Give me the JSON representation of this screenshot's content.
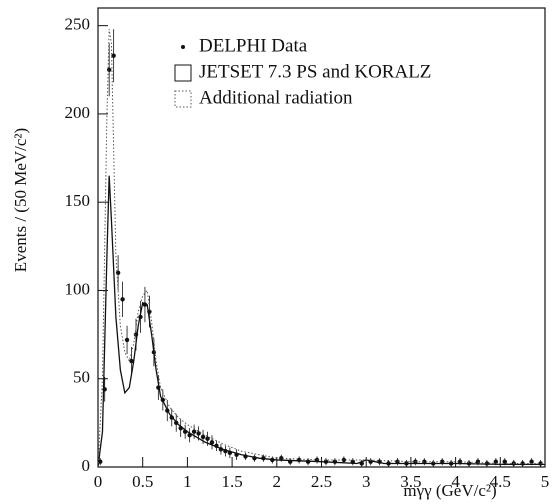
{
  "chart_data": {
    "type": "scatter",
    "xlabel": "mγγ (GeV/c²)",
    "ylabel": "Events / (50 MeV/c²)",
    "xlim": [
      0,
      5
    ],
    "ylim": [
      0,
      260
    ],
    "xticks": [
      0,
      0.5,
      1,
      1.5,
      2,
      2.5,
      3,
      3.5,
      4,
      4.5,
      5
    ],
    "yticks": [
      0,
      50,
      100,
      150,
      200,
      250
    ],
    "legend": "top-right",
    "series": [
      {
        "name": "DELPHI Data",
        "type": "scatter",
        "color": "#111111",
        "x": [
          0.025,
          0.075,
          0.125,
          0.175,
          0.225,
          0.275,
          0.325,
          0.375,
          0.425,
          0.475,
          0.525,
          0.575,
          0.625,
          0.675,
          0.725,
          0.775,
          0.825,
          0.875,
          0.925,
          0.975,
          1.025,
          1.075,
          1.125,
          1.175,
          1.225,
          1.275,
          1.325,
          1.375,
          1.425,
          1.475,
          1.55,
          1.65,
          1.75,
          1.85,
          1.95,
          2.05,
          2.15,
          2.25,
          2.35,
          2.45,
          2.55,
          2.65,
          2.75,
          2.85,
          2.95,
          3.05,
          3.15,
          3.25,
          3.35,
          3.45,
          3.55,
          3.65,
          3.75,
          3.85,
          3.95,
          4.05,
          4.15,
          4.25,
          4.35,
          4.45,
          4.55,
          4.65,
          4.75,
          4.85,
          4.95
        ],
        "values": [
          3,
          44,
          225,
          233,
          110,
          95,
          72,
          60,
          75,
          85,
          92,
          88,
          65,
          45,
          38,
          32,
          28,
          25,
          22,
          20,
          18,
          20,
          19,
          17,
          16,
          14,
          12,
          10,
          9,
          8,
          7,
          6,
          5,
          5,
          4,
          5,
          3,
          4,
          3,
          4,
          3,
          3,
          4,
          3,
          2,
          3,
          3,
          2,
          3,
          2,
          3,
          3,
          2,
          3,
          2,
          3,
          2,
          3,
          2,
          3,
          3,
          2,
          2,
          3,
          2
        ],
        "errors": [
          2,
          7,
          15,
          15,
          10,
          10,
          8,
          8,
          9,
          9,
          10,
          9,
          8,
          7,
          6,
          6,
          5,
          5,
          5,
          4,
          4,
          4,
          4,
          4,
          4,
          4,
          3,
          3,
          3,
          3,
          3,
          2,
          2,
          2,
          2,
          2,
          2,
          2,
          2,
          2,
          2,
          2,
          2,
          2,
          2,
          2,
          2,
          2,
          2,
          2,
          2,
          2,
          2,
          2,
          2,
          2,
          2,
          2,
          2,
          2,
          2,
          2,
          2,
          2,
          2
        ]
      },
      {
        "name": "JETSET 7.3 PS and KORALZ",
        "type": "line",
        "dash": "solid",
        "color": "#111111",
        "x": [
          0,
          0.05,
          0.1,
          0.125,
          0.15,
          0.2,
          0.25,
          0.3,
          0.35,
          0.4,
          0.45,
          0.5,
          0.55,
          0.6,
          0.65,
          0.7,
          0.8,
          0.9,
          1.0,
          1.2,
          1.4,
          1.6,
          1.8,
          2.0,
          2.5,
          2.9,
          3.0,
          3.2,
          3.5,
          4,
          4.5,
          5
        ],
        "values": [
          0,
          20,
          120,
          165,
          140,
          85,
          55,
          42,
          45,
          60,
          80,
          93,
          92,
          75,
          55,
          40,
          30,
          24,
          20,
          14,
          10,
          7,
          5,
          4,
          3,
          2,
          4,
          2,
          2,
          2,
          1.5,
          1.5
        ]
      },
      {
        "name": "Additional radiation",
        "type": "line",
        "dash": "dotted",
        "color": "#555555",
        "x": [
          0,
          0.05,
          0.1,
          0.125,
          0.15,
          0.2,
          0.25,
          0.3,
          0.35,
          0.4,
          0.45,
          0.5,
          0.55,
          0.6,
          0.65,
          0.7,
          0.8,
          0.9,
          1.0,
          1.2,
          1.4,
          1.6,
          1.8,
          2.0,
          2.5,
          3.0,
          3.5,
          4,
          4.5,
          5
        ],
        "values": [
          0,
          50,
          200,
          248,
          240,
          120,
          80,
          65,
          60,
          70,
          88,
          97,
          100,
          82,
          60,
          45,
          34,
          28,
          24,
          18,
          13,
          9,
          7,
          5,
          4,
          4,
          3,
          3,
          2,
          2
        ]
      }
    ]
  }
}
